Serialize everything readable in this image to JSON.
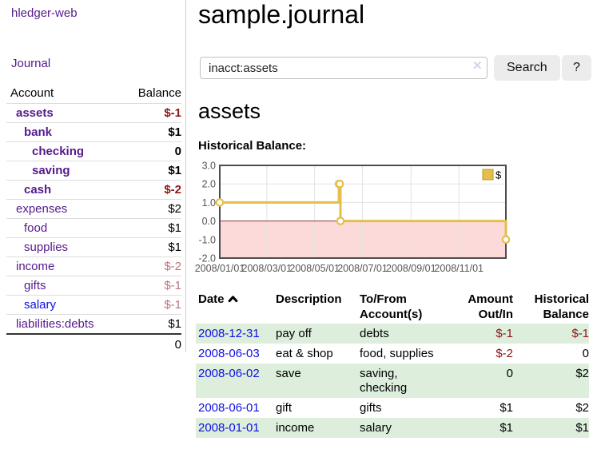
{
  "colors": {
    "link_purple": "#551a8b",
    "link_blue": "#0f0fe0",
    "negative_strong": "#8f1414",
    "negative_soft": "#bd7479",
    "row_shade_green": "#ddeedd",
    "chart_line": "#e5bf4a",
    "chart_negative_fill": "#fcdada",
    "chart_zero_line": "#993333",
    "chart_grid": "#e3e3e3",
    "chart_border": "#4d4d4d",
    "chart_tick_text": "#555555"
  },
  "sidebar": {
    "title": "hledger-web",
    "nav_journal": "Journal",
    "accounts": {
      "header_account": "Account",
      "header_balance": "Balance",
      "rows": [
        {
          "name": "assets",
          "depth": 1,
          "highlighted": true,
          "link_color": "purple",
          "balance": "$-1",
          "balance_color": "negative-strong"
        },
        {
          "name": "bank",
          "depth": 2,
          "highlighted": true,
          "link_color": "purple",
          "balance": "$1",
          "balance_color": "normal"
        },
        {
          "name": "checking",
          "depth": 3,
          "highlighted": true,
          "link_color": "purple",
          "balance": "0",
          "balance_color": "normal"
        },
        {
          "name": "saving",
          "depth": 3,
          "highlighted": true,
          "link_color": "purple",
          "balance": "$1",
          "balance_color": "normal"
        },
        {
          "name": "cash",
          "depth": 2,
          "highlighted": true,
          "link_color": "purple",
          "balance": "$-2",
          "balance_color": "negative-strong"
        },
        {
          "name": "expenses",
          "depth": 1,
          "highlighted": false,
          "link_color": "purple",
          "balance": "$2",
          "balance_color": "normal"
        },
        {
          "name": "food",
          "depth": 2,
          "highlighted": false,
          "link_color": "purple",
          "balance": "$1",
          "balance_color": "normal"
        },
        {
          "name": "supplies",
          "depth": 2,
          "highlighted": false,
          "link_color": "purple",
          "balance": "$1",
          "balance_color": "normal"
        },
        {
          "name": "income",
          "depth": 1,
          "highlighted": false,
          "link_color": "purple",
          "balance": "$-2",
          "balance_color": "negative-soft"
        },
        {
          "name": "gifts",
          "depth": 2,
          "highlighted": false,
          "link_color": "purple",
          "balance": "$-1",
          "balance_color": "negative-soft"
        },
        {
          "name": "salary",
          "depth": 2,
          "highlighted": false,
          "link_color": "blue",
          "balance": "$-1",
          "balance_color": "negative-soft"
        },
        {
          "name": "liabilities:debts",
          "depth": 1,
          "highlighted": false,
          "link_color": "purple",
          "balance": "$1",
          "balance_color": "normal"
        }
      ],
      "total": "0"
    }
  },
  "main": {
    "title": "sample.journal",
    "search": {
      "value": "inacct:assets",
      "clear_label": "✕",
      "button_label": "Search",
      "help_label": "?"
    },
    "heading": "assets",
    "table": {
      "headers": [
        {
          "line1": "Date",
          "line2": "",
          "align": "left",
          "sorted": "asc"
        },
        {
          "line1": "Description",
          "line2": "",
          "align": "left"
        },
        {
          "line1": "To/From",
          "line2": "Account(s)",
          "align": "left"
        },
        {
          "line1": "Amount",
          "line2": "Out/In",
          "align": "right"
        },
        {
          "line1": "Historical",
          "line2": "Balance",
          "align": "right"
        }
      ],
      "rows": [
        {
          "date": "2008-12-31",
          "description": "pay off",
          "accounts": "debts",
          "amount": "$-1",
          "amount_negative": true,
          "balance": "$-1",
          "balance_negative": true,
          "shaded": true
        },
        {
          "date": "2008-06-03",
          "description": "eat & shop",
          "accounts": "food, supplies",
          "amount": "$-2",
          "amount_negative": true,
          "balance": "0",
          "balance_negative": false,
          "shaded": false
        },
        {
          "date": "2008-06-02",
          "description": "save",
          "accounts": "saving, checking",
          "amount": "0",
          "amount_negative": false,
          "balance": "$2",
          "balance_negative": false,
          "shaded": true
        },
        {
          "date": "2008-06-01",
          "description": "gift",
          "accounts": "gifts",
          "amount": "$1",
          "amount_negative": false,
          "balance": "$2",
          "balance_negative": false,
          "shaded": false
        },
        {
          "date": "2008-01-01",
          "description": "income",
          "accounts": "salary",
          "amount": "$1",
          "amount_negative": false,
          "balance": "$1",
          "balance_negative": false,
          "shaded": true
        }
      ]
    }
  },
  "chart_data": {
    "type": "line",
    "title": "Historical Balance:",
    "step": true,
    "x_range": [
      "2008-01-01",
      "2008-12-31"
    ],
    "y_range": [
      -2,
      3
    ],
    "x_ticks": [
      {
        "date": "2008-01-01",
        "label": "2008/01/01"
      },
      {
        "date": "2008-03-01",
        "label": "2008/03/01"
      },
      {
        "date": "2008-05-01",
        "label": "2008/05/01"
      },
      {
        "date": "2008-07-01",
        "label": "2008/07/01"
      },
      {
        "date": "2008-09-01",
        "label": "2008/09/01"
      },
      {
        "date": "2008-11-01",
        "label": "2008/11/01"
      }
    ],
    "y_ticks": [
      {
        "value": 3,
        "label": "3.0"
      },
      {
        "value": 2,
        "label": "2.0"
      },
      {
        "value": 1,
        "label": "1.0"
      },
      {
        "value": 0,
        "label": "0.0"
      },
      {
        "value": -1,
        "label": "-1.0"
      },
      {
        "value": -2,
        "label": "-2.0"
      }
    ],
    "negative_region": {
      "below": 0
    },
    "legend": {
      "position": "top-right",
      "entries": [
        "$"
      ]
    },
    "series": [
      {
        "name": "$",
        "points": [
          {
            "date": "2008-01-01",
            "value": 1
          },
          {
            "date": "2008-06-01",
            "value": 2
          },
          {
            "date": "2008-06-02",
            "value": 2
          },
          {
            "date": "2008-06-03",
            "value": 0
          },
          {
            "date": "2008-12-31",
            "value": -1
          }
        ]
      }
    ]
  }
}
